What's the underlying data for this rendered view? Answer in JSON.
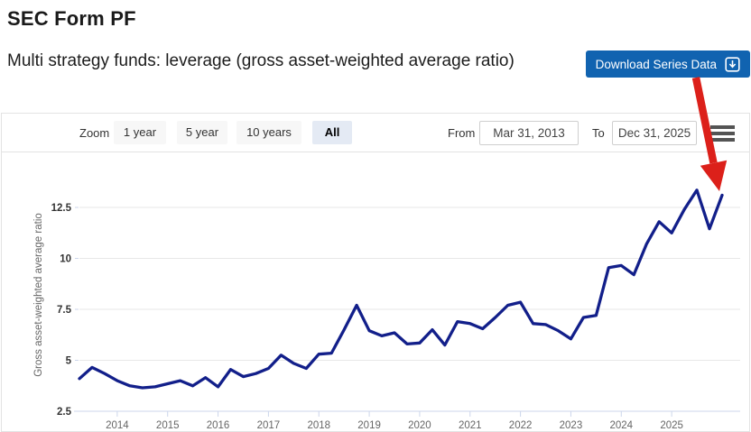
{
  "page": {
    "title": "SEC Form PF",
    "subtitle": "Multi strategy funds: leverage (gross asset-weighted average ratio)"
  },
  "download_button": {
    "label": "Download Series Data",
    "icon": "download-icon",
    "bg_color": "#1163b0"
  },
  "toolbar": {
    "zoom_label": "Zoom",
    "zoom_buttons": [
      {
        "label": "1 year",
        "selected": false
      },
      {
        "label": "5 year",
        "selected": false
      },
      {
        "label": "10 years",
        "selected": false
      },
      {
        "label": "All",
        "selected": true
      }
    ],
    "from_label": "From",
    "from_value": "Mar 31, 2013",
    "to_label": "To",
    "to_value": "Dec 31, 2025",
    "menu_icon": "hamburger-menu-icon"
  },
  "chart_data": {
    "type": "line",
    "title": "",
    "xlabel": "",
    "ylabel": "Gross asset-weighted average ratio",
    "yticks": [
      2.5,
      5,
      7.5,
      10,
      12.5
    ],
    "ylim": [
      2.5,
      14.1
    ],
    "xticks": [
      2014,
      2015,
      2016,
      2017,
      2018,
      2019,
      2020,
      2021,
      2022,
      2023,
      2024,
      2025
    ],
    "x_start": "Mar 31, 2013",
    "x_end": "Dec 31, 2025",
    "frequency": "quarterly",
    "grid": "horizontal",
    "legend": "none",
    "series": [
      {
        "name": "Multi strategy funds: leverage (gross asset-weighted average ratio)",
        "color": "#121f8a",
        "values_by_year": {
          "2013": [
            4.1,
            4.65,
            4.35,
            4.0
          ],
          "2014": [
            3.75,
            3.65,
            3.7,
            3.85
          ],
          "2015": [
            4.0,
            3.75,
            4.15,
            3.7
          ],
          "2016": [
            4.55,
            4.2,
            4.35,
            4.6
          ],
          "2017": [
            5.25,
            4.85,
            4.6,
            5.3
          ],
          "2018": [
            5.35,
            6.5,
            7.7,
            6.45
          ],
          "2019": [
            6.2,
            6.35,
            5.8,
            5.85
          ],
          "2020": [
            6.5,
            5.75,
            6.9,
            6.8
          ],
          "2021": [
            6.55,
            7.1,
            7.7,
            7.85
          ],
          "2022": [
            6.8,
            6.75,
            6.45,
            6.05
          ],
          "2023": [
            7.1,
            7.2,
            9.55,
            9.65
          ],
          "2024": [
            9.2,
            10.7,
            11.8,
            11.25
          ],
          "2025": [
            12.4,
            13.35,
            11.45,
            13.1
          ]
        }
      }
    ],
    "annotation": {
      "shape": "red-arrow",
      "color": "#dc201a",
      "points_to": "last data point (Dec 31, 2025)"
    }
  },
  "colors": {
    "line": "#121f8a",
    "button_blue": "#1163b0",
    "arrow_red": "#dc201a",
    "gridline": "#e7e7e7",
    "axis_line": "#ccd6eb",
    "tick_text": "#333333",
    "muted_text": "#666666"
  }
}
